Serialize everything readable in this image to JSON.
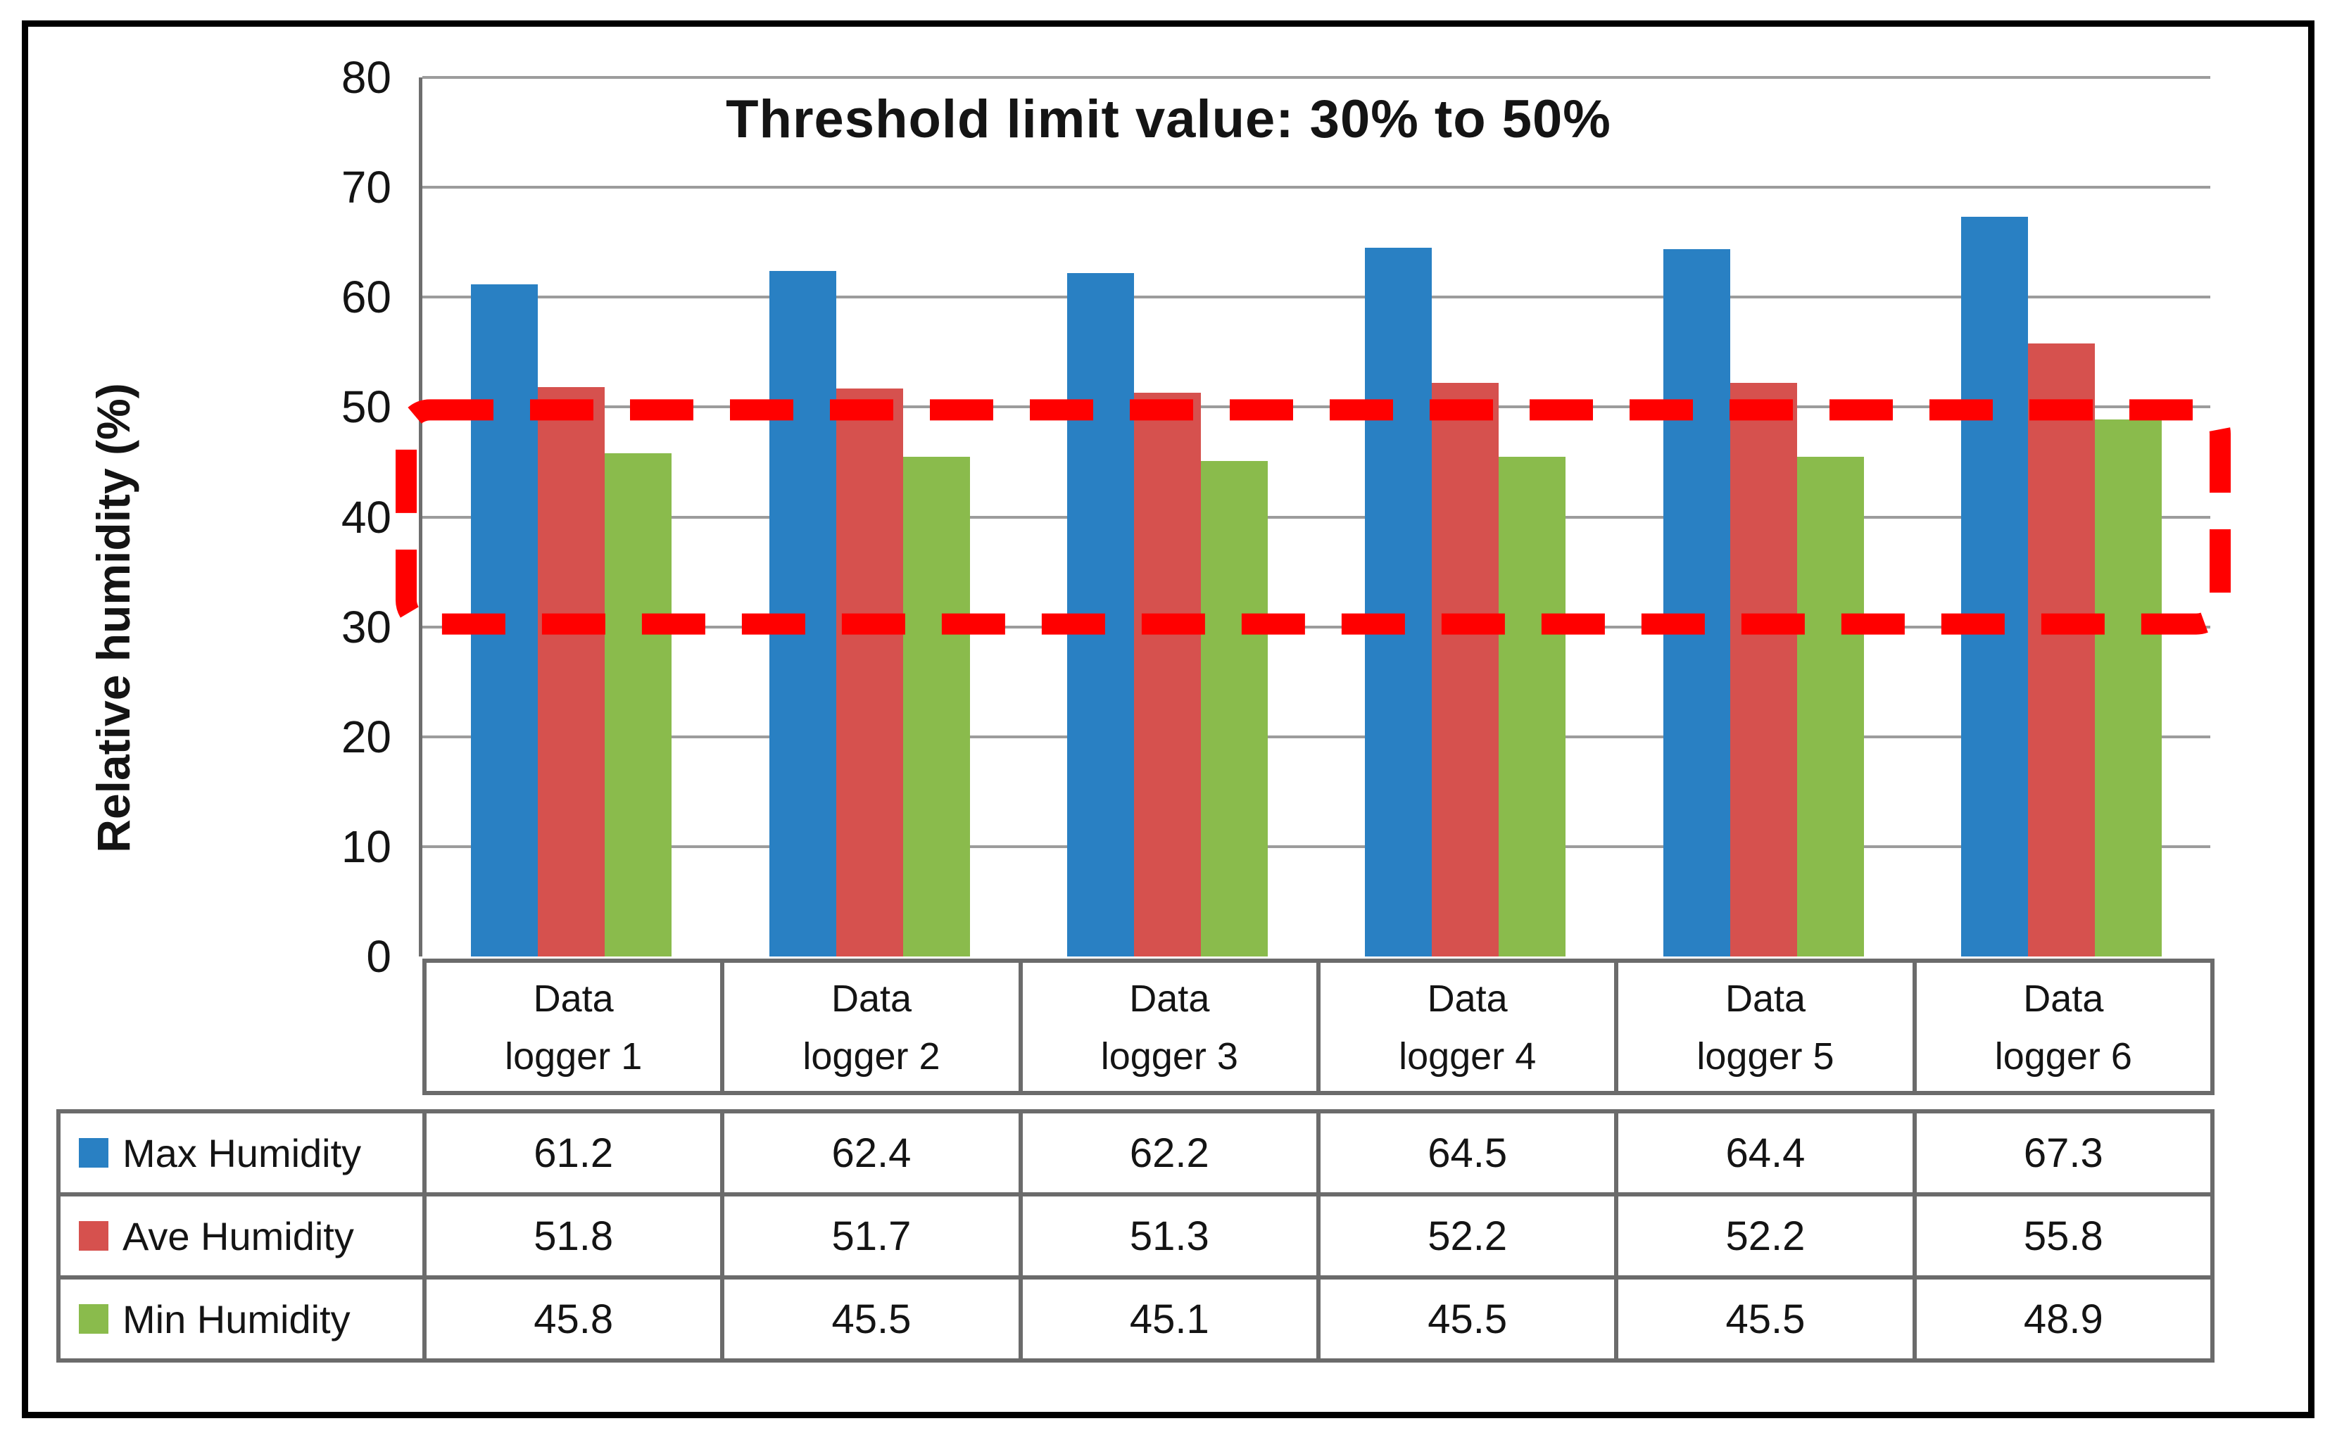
{
  "figure": {
    "kind": "clustered column chart with data table",
    "background": "#FFFFFF",
    "frame_color": "#000000"
  },
  "chart_data": {
    "type": "bar",
    "title": "Threshold limit value: 30% to 50%",
    "xlabel": "",
    "ylabel": "Relative humidity (%)",
    "ylim": [
      0,
      80
    ],
    "yticks": [
      0,
      10,
      20,
      30,
      40,
      50,
      60,
      70,
      80
    ],
    "grid": "horizontal",
    "legend_position": "data-table-left",
    "categories": [
      "Data logger 1",
      "Data logger 2",
      "Data logger 3",
      "Data logger 4",
      "Data logger 5",
      "Data logger 6"
    ],
    "series": [
      {
        "name": "Max Humidity",
        "color": "#2980C3",
        "values": [
          61.2,
          62.4,
          62.2,
          64.5,
          64.4,
          67.3
        ]
      },
      {
        "name": "Ave Humidity",
        "color": "#D6514E",
        "values": [
          51.8,
          51.7,
          51.3,
          52.2,
          52.2,
          55.8
        ]
      },
      {
        "name": "Min Humidity",
        "color": "#8ABB4C",
        "values": [
          45.8,
          45.5,
          45.1,
          45.5,
          45.5,
          48.9
        ]
      }
    ],
    "annotations": {
      "threshold_band": {
        "low": 30,
        "high": 50,
        "style": "dashed",
        "color": "#FF0000"
      }
    }
  },
  "colors": {
    "gridline": "#9C9C9C",
    "axis": "#6E6E6E",
    "table_border": "#6B6B6B",
    "text": "#141414"
  }
}
